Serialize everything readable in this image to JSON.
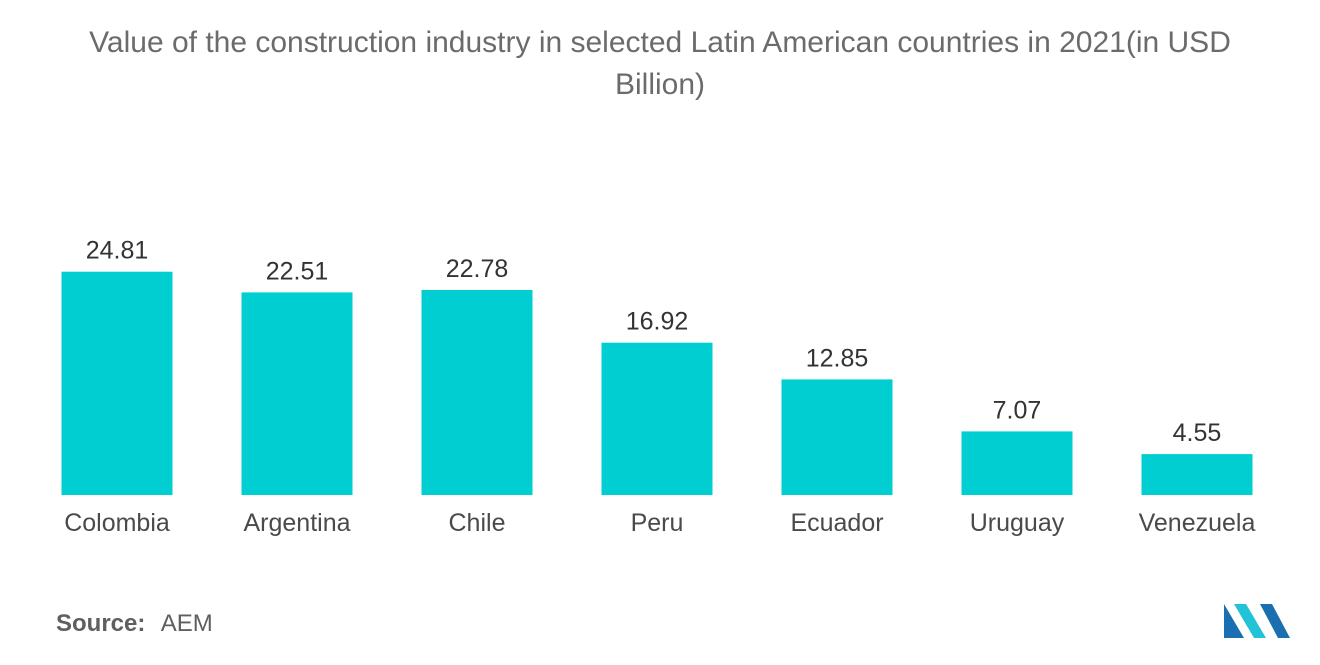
{
  "chart_data": {
    "type": "bar",
    "title": "Value of the construction industry in selected Latin American countries in 2021(in USD Billion)",
    "xlabel": "",
    "ylabel": "",
    "categories": [
      "Colombia",
      "Argentina",
      "Chile",
      "Peru",
      "Ecuador",
      "Uruguay",
      "Venezuela"
    ],
    "values": [
      24.81,
      22.51,
      22.78,
      16.92,
      12.85,
      7.07,
      4.55
    ],
    "value_labels": [
      "24.81",
      "22.51",
      "22.78",
      "16.92",
      "12.85",
      "7.07",
      "4.55"
    ],
    "ylim": [
      0,
      25
    ],
    "grid": false,
    "legend": "none",
    "bar_color": "#00CED1"
  },
  "source": {
    "label": "Source:",
    "value": "AEM"
  },
  "colors": {
    "title": "#6b6b6b",
    "tick_label": "#4a4a4a",
    "value_label": "#333333",
    "logo_dark": "#1a6fb0",
    "logo_light": "#22c3d6"
  }
}
